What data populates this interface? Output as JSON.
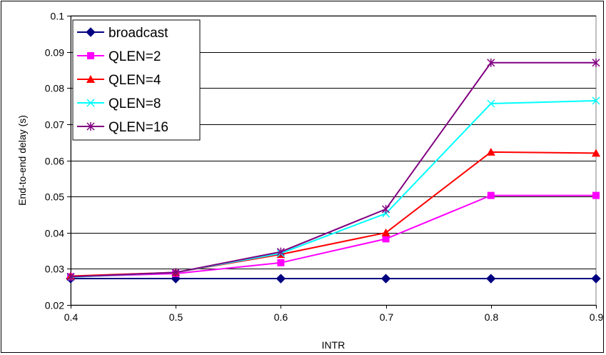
{
  "chart_data": {
    "type": "line",
    "title": "",
    "xlabel": "INTR",
    "ylabel": "End-to-end delay (s)",
    "x": [
      0.4,
      0.5,
      0.6,
      0.7,
      0.8,
      0.9
    ],
    "x_tick_labels": [
      "0.4",
      "0.5",
      "0.6",
      "0.7",
      "0.8",
      "0.9"
    ],
    "y_tick_labels": [
      "0.02",
      "0.03",
      "0.04",
      "0.05",
      "0.06",
      "0.07",
      "0.08",
      "0.09",
      "0.1"
    ],
    "xlim": [
      0.4,
      0.9
    ],
    "ylim": [
      0.02,
      0.1
    ],
    "grid": "horizontal",
    "legend_position": "top-left",
    "series": [
      {
        "name": "broadcast",
        "color": "#000080",
        "marker": "diamond",
        "values": [
          0.0273,
          0.0273,
          0.0273,
          0.0273,
          0.0273,
          0.0273
        ]
      },
      {
        "name": "QLEN=2",
        "color": "#ff00ff",
        "marker": "square",
        "values": [
          0.0278,
          0.0287,
          0.0317,
          0.0383,
          0.0503,
          0.0503
        ]
      },
      {
        "name": "QLEN=4",
        "color": "#ff0000",
        "marker": "triangle",
        "values": [
          0.028,
          0.029,
          0.034,
          0.04,
          0.0623,
          0.062
        ]
      },
      {
        "name": "QLEN=8",
        "color": "#00ffff",
        "marker": "x",
        "values": [
          0.0277,
          0.029,
          0.0343,
          0.0453,
          0.0757,
          0.0765
        ]
      },
      {
        "name": "QLEN=16",
        "color": "#800080",
        "marker": "star",
        "values": [
          0.0278,
          0.029,
          0.0347,
          0.0465,
          0.087,
          0.087
        ]
      }
    ]
  }
}
